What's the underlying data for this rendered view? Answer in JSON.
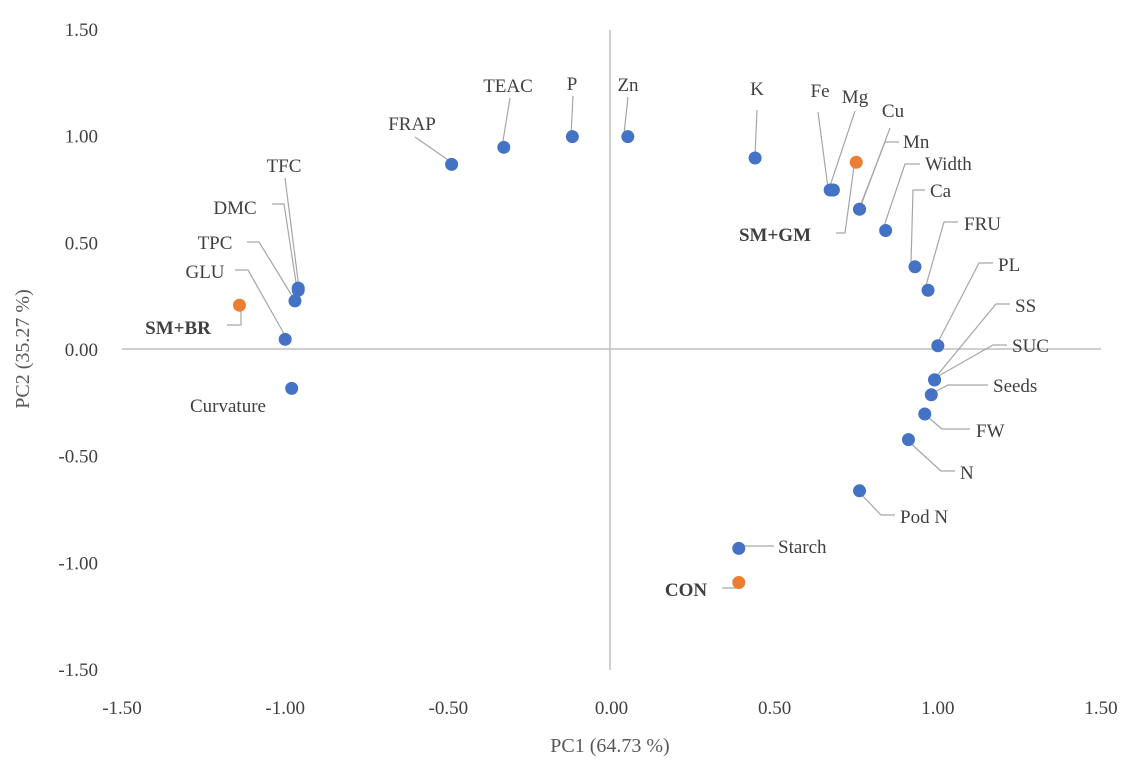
{
  "chart_data": {
    "type": "scatter",
    "xlabel": "PC1 (64.73 %)",
    "ylabel": "PC2 (35.27 %)",
    "xlim": [
      -1.5,
      1.5
    ],
    "ylim": [
      -1.5,
      1.5
    ],
    "x_ticks": [
      "-1.50",
      "-1.00",
      "-0.50",
      "0.00",
      "0.50",
      "1.00",
      "1.50"
    ],
    "y_ticks": [
      "1.50",
      "1.00",
      "0.50",
      "0.00",
      "-0.50",
      "-1.00",
      "-1.50"
    ],
    "grid": false,
    "colors": {
      "variables": "#4472C4",
      "treatments": "#ED7D31"
    },
    "series": [
      {
        "points": [
          {
            "label": "FRAP",
            "x": -0.49,
            "y": 0.87
          },
          {
            "label": "TEAC",
            "x": -0.33,
            "y": 0.95
          },
          {
            "label": "P",
            "x": -0.12,
            "y": 1.0
          },
          {
            "label": "Zn",
            "x": 0.05,
            "y": 1.0
          },
          {
            "label": "K",
            "x": 0.44,
            "y": 0.9
          },
          {
            "label": "Fe",
            "x": 0.67,
            "y": 0.75
          },
          {
            "label": "Mg",
            "x": 0.68,
            "y": 0.75
          },
          {
            "label": "Cu",
            "x": 0.76,
            "y": 0.66
          },
          {
            "label": "Mn",
            "x": 0.76,
            "y": 0.66
          },
          {
            "label": "Width",
            "x": 0.84,
            "y": 0.56
          },
          {
            "label": "Ca",
            "x": 0.93,
            "y": 0.39
          },
          {
            "label": "FRU",
            "x": 0.97,
            "y": 0.28
          },
          {
            "label": "PL",
            "x": 1.0,
            "y": 0.02
          },
          {
            "label": "SS",
            "x": 0.99,
            "y": -0.14
          },
          {
            "label": "SUC",
            "x": 0.99,
            "y": -0.14
          },
          {
            "label": "Seeds",
            "x": 0.98,
            "y": -0.21
          },
          {
            "label": "FW",
            "x": 0.96,
            "y": -0.3
          },
          {
            "label": "N",
            "x": 0.91,
            "y": -0.42
          },
          {
            "label": "Pod N",
            "x": 0.76,
            "y": -0.66
          },
          {
            "label": "Starch",
            "x": 0.39,
            "y": -0.93
          },
          {
            "label": "TFC",
            "x": -0.96,
            "y": 0.29
          },
          {
            "label": "DMC",
            "x": -0.96,
            "y": 0.28
          },
          {
            "label": "TPC",
            "x": -0.97,
            "y": 0.23
          },
          {
            "label": "GLU",
            "x": -1.0,
            "y": 0.05
          },
          {
            "label": "Curvature",
            "x": -0.98,
            "y": -0.18
          }
        ]
      },
      {
        "points": [
          {
            "label": "SM+GM",
            "x": 0.75,
            "y": 0.88
          },
          {
            "label": "SM+BR",
            "x": -1.14,
            "y": 0.21
          },
          {
            "label": "CON",
            "x": 0.39,
            "y": -1.09
          }
        ]
      }
    ]
  }
}
